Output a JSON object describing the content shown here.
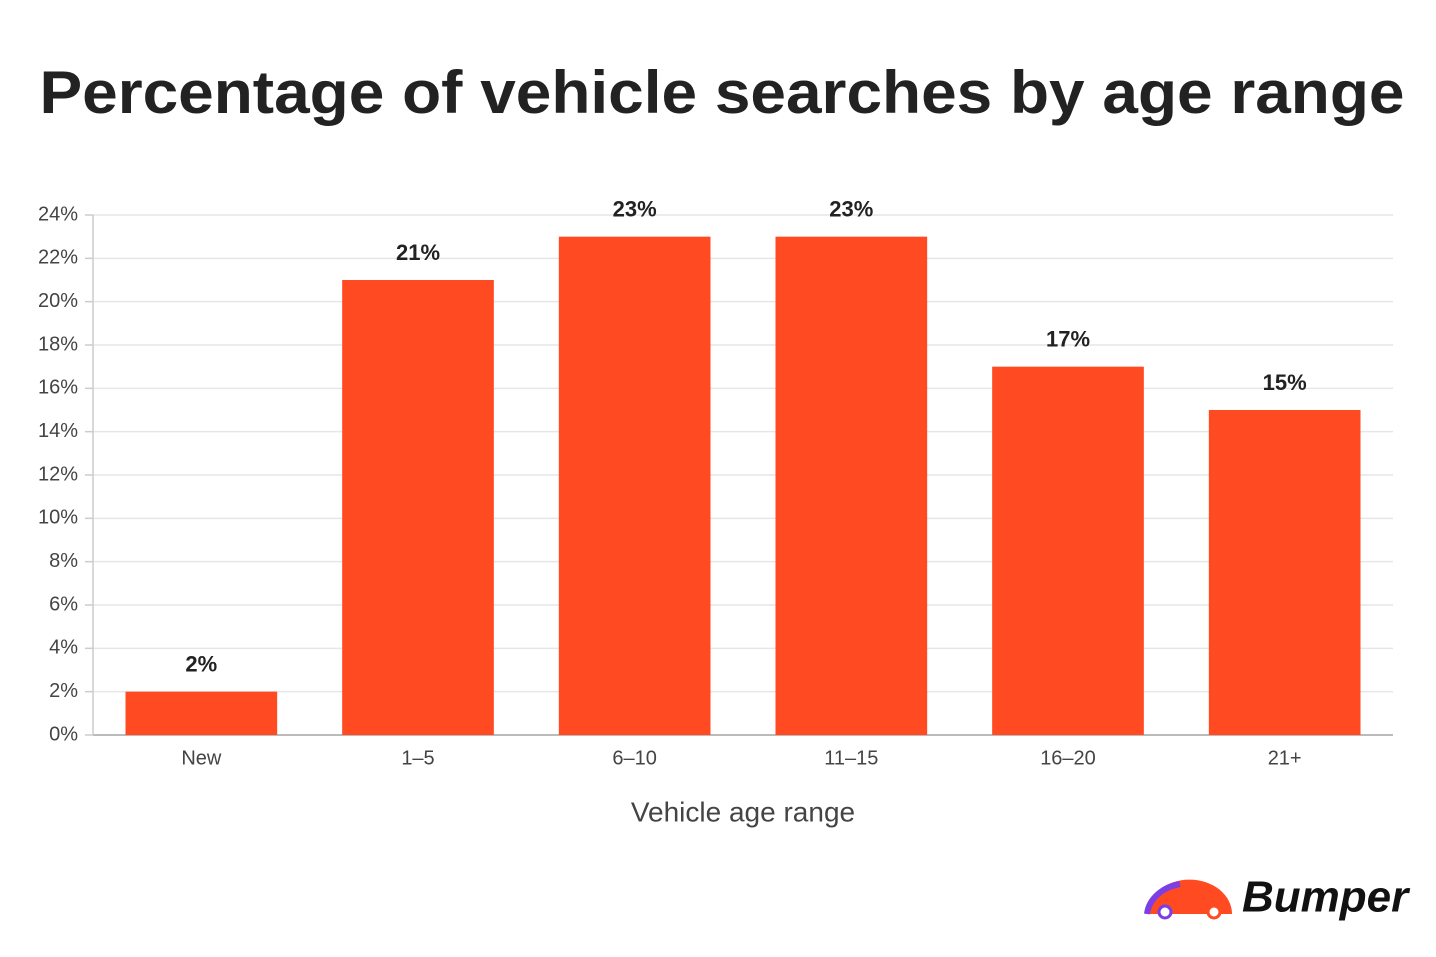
{
  "chart_data": {
    "type": "bar",
    "title": "Percentage of vehicle searches by age range",
    "x_label": "Vehicle age range",
    "categories": [
      "New",
      "1–5",
      "6–10",
      "11–15",
      "16–20",
      "21+"
    ],
    "values": [
      2,
      21,
      23,
      23,
      17,
      15
    ],
    "value_labels": [
      "2%",
      "21%",
      "23%",
      "23%",
      "17%",
      "15%"
    ],
    "color": "#ff4a22",
    "ylim": [
      0,
      24
    ],
    "yticks": [
      {
        "value": 0,
        "label": "0%"
      },
      {
        "value": 2,
        "label": "2%"
      },
      {
        "value": 4,
        "label": "4%"
      },
      {
        "value": 6,
        "label": "6%"
      },
      {
        "value": 8,
        "label": "8%"
      },
      {
        "value": 10,
        "label": "10%"
      },
      {
        "value": 12,
        "label": "12%"
      },
      {
        "value": 14,
        "label": "14%"
      },
      {
        "value": 16,
        "label": "16%"
      },
      {
        "value": 18,
        "label": "18%"
      },
      {
        "value": 20,
        "label": "20%"
      },
      {
        "value": 22,
        "label": "22%"
      },
      {
        "value": 24,
        "label": "24%"
      }
    ],
    "grid": true
  },
  "brand": "Bumper"
}
